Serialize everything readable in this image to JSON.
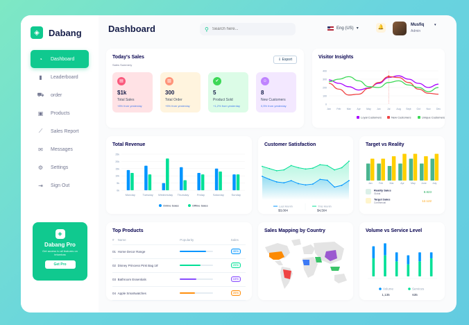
{
  "app": {
    "name": "Dabang"
  },
  "sidebar": {
    "items": [
      {
        "label": "Dashboard",
        "icon": "dashboard-icon",
        "active": true
      },
      {
        "label": "Leaderboard",
        "icon": "leaderboard-icon"
      },
      {
        "label": "order",
        "icon": "cart-icon"
      },
      {
        "label": "Products",
        "icon": "products-icon"
      },
      {
        "label": "Sales Report",
        "icon": "chart-line-icon"
      },
      {
        "label": "Messages",
        "icon": "message-icon"
      },
      {
        "label": "Settings",
        "icon": "gear-icon"
      },
      {
        "label": "Sign Out",
        "icon": "sign-out-icon"
      }
    ]
  },
  "promo": {
    "title": "Dabang Pro",
    "desc": "Get access to all features on tetumbas",
    "button": "Get Pro"
  },
  "header": {
    "title": "Dashboard",
    "search_placeholder": "Search here...",
    "language": "Eng (US)",
    "user_name": "Musfiq",
    "user_role": "Admin"
  },
  "sales": {
    "title": "Today's Sales",
    "subtitle": "Sales Summery",
    "export": "Export",
    "tiles": [
      {
        "value": "$1k",
        "label": "Total Sales",
        "change": "+8% from yesterday",
        "bg": "#ffe2e5",
        "icon_bg": "#fa5a7d",
        "icon": "sales-icon"
      },
      {
        "value": "300",
        "label": "Total Order",
        "change": "+5% from yesterday",
        "bg": "#fff4de",
        "icon_bg": "#ff947a",
        "icon": "order-icon"
      },
      {
        "value": "5",
        "label": "Product Sold",
        "change": "+1,2% from yesterday",
        "bg": "#dcfce7",
        "icon_bg": "#3cd856",
        "icon": "tag-icon"
      },
      {
        "value": "8",
        "label": "New Customers",
        "change": "0,5% from yesterday",
        "bg": "#f3e8ff",
        "icon_bg": "#bf83ff",
        "icon": "customer-icon"
      }
    ]
  },
  "chart_data": [
    {
      "id": "visitor",
      "type": "line",
      "title": "Visitor Insights",
      "categories": [
        "Jan",
        "Feb",
        "Mar",
        "Apr",
        "May",
        "Jun",
        "Jul",
        "Aug",
        "Sept",
        "Oct",
        "Nov",
        "Dec"
      ],
      "ylim": [
        0,
        400
      ],
      "yticks": [
        "400",
        "300",
        "200",
        "100",
        "0"
      ],
      "series": [
        {
          "name": "Loyal Customers",
          "color": "#a700ff",
          "values": [
            290,
            250,
            210,
            170,
            195,
            250,
            320,
            340,
            300,
            250,
            200,
            240
          ]
        },
        {
          "name": "New Customers",
          "color": "#ef4444",
          "values": [
            250,
            180,
            110,
            120,
            190,
            260,
            330,
            320,
            260,
            180,
            130,
            120
          ]
        },
        {
          "name": "Unique Customers",
          "color": "#3cd856",
          "values": [
            270,
            300,
            330,
            280,
            210,
            200,
            260,
            280,
            230,
            200,
            150,
            200
          ]
        }
      ]
    },
    {
      "id": "revenue",
      "type": "bar",
      "title": "Total Revenue",
      "categories": [
        "Monday",
        "Tuesday",
        "Wednesday",
        "Thursday",
        "Friday",
        "Saturday",
        "Sunday"
      ],
      "ylim": [
        0,
        25
      ],
      "yticks": [
        "25k",
        "20k",
        "15k",
        "10k",
        "5k",
        "0k"
      ],
      "series": [
        {
          "name": "Online Sales",
          "color": "#0095ff",
          "values": [
            14,
            17,
            5,
            16,
            12,
            15,
            11
          ]
        },
        {
          "name": "Offline Sales",
          "color": "#00e096",
          "values": [
            12,
            11,
            22,
            7,
            11,
            13,
            11
          ]
        }
      ]
    },
    {
      "id": "satisfaction",
      "type": "area",
      "title": "Customer Satisfaction",
      "ylim": [
        0,
        100
      ],
      "series": [
        {
          "name": "Last Month",
          "color": "#0095ff",
          "total": "$3,004",
          "values": [
            55,
            48,
            42,
            40,
            45,
            38,
            35,
            37,
            48,
            46,
            30,
            34,
            45
          ]
        },
        {
          "name": "This Month",
          "color": "#07e098",
          "total": "$4,504",
          "values": [
            78,
            73,
            68,
            70,
            80,
            75,
            72,
            74,
            82,
            80,
            70,
            75,
            90
          ]
        }
      ]
    },
    {
      "id": "target",
      "type": "bar",
      "title": "Target vs Reality",
      "categories": [
        "Jan",
        "Feb",
        "Mar",
        "Apr",
        "May",
        "June",
        "July"
      ],
      "ylim": [
        0,
        12
      ],
      "series": [
        {
          "name": "Reality Sales",
          "color": "#4ab58e",
          "total": "8.823",
          "sub": "Global",
          "values": [
            7,
            7,
            6,
            7,
            9,
            7,
            9
          ]
        },
        {
          "name": "Target Sales",
          "color": "#ffcf00",
          "total": "12.122",
          "sub": "Commercial",
          "values": [
            9,
            9,
            10,
            11,
            11,
            10,
            11
          ]
        }
      ]
    },
    {
      "id": "volume",
      "type": "bar",
      "title": "Volume vs Service Level",
      "ylim": [
        0,
        12
      ],
      "series": [
        {
          "name": "Volume",
          "color": "#0095ff",
          "total": "1,135",
          "values": [
            4,
            4,
            3,
            3,
            3,
            2
          ]
        },
        {
          "name": "Services",
          "color": "#00e096",
          "total": "635",
          "values": [
            6,
            7,
            5,
            4,
            5,
            6
          ]
        }
      ]
    }
  ],
  "top_products": {
    "title": "Top Products",
    "headers": [
      "#",
      "Name",
      "Popularity",
      "Sales"
    ],
    "rows": [
      {
        "n": "01",
        "name": "Home Decor Range",
        "pop": 0.78,
        "sales": "45%",
        "color": "#0095ff"
      },
      {
        "n": "02",
        "name": "Disney Princess Pink Bag 18'",
        "pop": 0.62,
        "sales": "29%",
        "color": "#00e096"
      },
      {
        "n": "03",
        "name": "Bathroom Essentials",
        "pop": 0.5,
        "sales": "18%",
        "color": "#884dff"
      },
      {
        "n": "04",
        "name": "Apple Smartwatches",
        "pop": 0.45,
        "sales": "25%",
        "color": "#ff8f0d"
      }
    ]
  },
  "mapping": {
    "title": "Sales Mapping by Country"
  }
}
